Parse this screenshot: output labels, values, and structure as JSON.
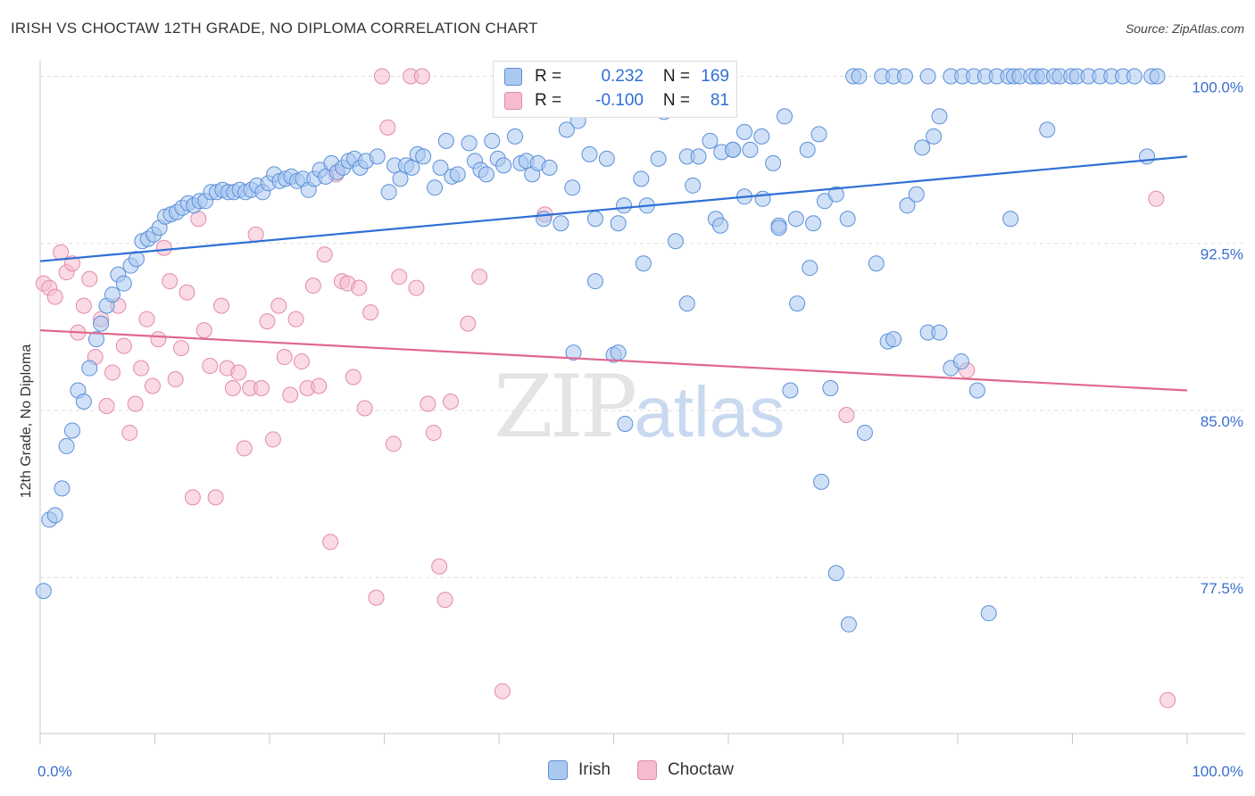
{
  "header": {
    "title": "IRISH VS CHOCTAW 12TH GRADE, NO DIPLOMA CORRELATION CHART",
    "source": "Source: ZipAtlas.com"
  },
  "watermark": {
    "zip": "ZIP",
    "atlas": "atlas"
  },
  "legend": {
    "irish": {
      "r_label": "R =",
      "r_value": "0.232",
      "n_label": "N =",
      "n_value": "169"
    },
    "choctaw": {
      "r_label": "R =",
      "r_value": "-0.100",
      "n_label": "N =",
      "n_value": "81"
    }
  },
  "bottom_legend": {
    "irish": "Irish",
    "choctaw": "Choctaw"
  },
  "colors": {
    "irish_fill": "#aac8f0",
    "irish_stroke": "#5b8fd9",
    "irish_line": "#2f6fd6",
    "choctaw_fill": "#f5bcd0",
    "choctaw_stroke": "#e38aa9",
    "choctaw_line": "#e0688f",
    "tick_text": "#3a6fd0"
  },
  "chart_data": {
    "type": "scatter",
    "title": "IRISH VS CHOCTAW 12TH GRADE, NO DIPLOMA CORRELATION CHART",
    "xlabel": "",
    "ylabel": "12th Grade, No Diploma",
    "xlim": [
      0,
      100
    ],
    "ylim": [
      70.5,
      100.7
    ],
    "x_tick_labels": [
      "0.0%",
      "100.0%"
    ],
    "y_ticks": [
      77.5,
      85.0,
      92.5,
      100.0
    ],
    "y_tick_labels": [
      "77.5%",
      "85.0%",
      "92.5%",
      "100.0%"
    ],
    "grid": true,
    "legend_position": "top-center",
    "series": [
      {
        "name": "Irish",
        "trend": {
          "x": [
            0,
            100
          ],
          "y": [
            91.7,
            96.4
          ]
        },
        "points": [
          [
            0.3,
            76.9
          ],
          [
            0.8,
            80.1
          ],
          [
            1.3,
            80.3
          ],
          [
            1.9,
            81.5
          ],
          [
            2.3,
            83.4
          ],
          [
            2.8,
            84.1
          ],
          [
            3.3,
            85.9
          ],
          [
            3.8,
            85.4
          ],
          [
            4.3,
            86.9
          ],
          [
            4.9,
            88.2
          ],
          [
            5.3,
            88.9
          ],
          [
            5.8,
            89.7
          ],
          [
            6.3,
            90.2
          ],
          [
            6.8,
            91.1
          ],
          [
            7.3,
            90.7
          ],
          [
            7.9,
            91.5
          ],
          [
            8.4,
            91.8
          ],
          [
            8.9,
            92.6
          ],
          [
            9.4,
            92.7
          ],
          [
            9.9,
            92.9
          ],
          [
            10.4,
            93.2
          ],
          [
            10.9,
            93.7
          ],
          [
            11.4,
            93.8
          ],
          [
            11.9,
            93.9
          ],
          [
            12.4,
            94.1
          ],
          [
            12.9,
            94.3
          ],
          [
            13.4,
            94.2
          ],
          [
            13.9,
            94.4
          ],
          [
            14.4,
            94.4
          ],
          [
            14.9,
            94.8
          ],
          [
            15.4,
            94.8
          ],
          [
            15.9,
            94.9
          ],
          [
            16.4,
            94.8
          ],
          [
            16.9,
            94.8
          ],
          [
            17.4,
            94.9
          ],
          [
            17.9,
            94.8
          ],
          [
            18.4,
            94.9
          ],
          [
            18.9,
            95.1
          ],
          [
            19.4,
            94.8
          ],
          [
            19.9,
            95.2
          ],
          [
            20.4,
            95.6
          ],
          [
            20.9,
            95.3
          ],
          [
            21.4,
            95.4
          ],
          [
            21.9,
            95.5
          ],
          [
            22.4,
            95.3
          ],
          [
            22.9,
            95.4
          ],
          [
            23.4,
            94.9
          ],
          [
            23.9,
            95.4
          ],
          [
            24.4,
            95.8
          ],
          [
            24.9,
            95.5
          ],
          [
            25.4,
            96.1
          ],
          [
            25.9,
            95.7
          ],
          [
            26.4,
            95.9
          ],
          [
            26.9,
            96.2
          ],
          [
            27.4,
            96.3
          ],
          [
            27.9,
            95.9
          ],
          [
            28.4,
            96.2
          ],
          [
            29.4,
            96.4
          ],
          [
            30.4,
            94.8
          ],
          [
            30.9,
            96.0
          ],
          [
            31.4,
            95.4
          ],
          [
            31.9,
            96.0
          ],
          [
            32.4,
            95.9
          ],
          [
            32.9,
            96.5
          ],
          [
            33.4,
            96.4
          ],
          [
            34.4,
            95.0
          ],
          [
            34.9,
            95.9
          ],
          [
            35.4,
            97.1
          ],
          [
            35.9,
            95.5
          ],
          [
            36.4,
            95.6
          ],
          [
            37.4,
            97.0
          ],
          [
            37.9,
            96.2
          ],
          [
            38.4,
            95.8
          ],
          [
            38.9,
            95.6
          ],
          [
            39.4,
            97.1
          ],
          [
            39.9,
            96.3
          ],
          [
            40.4,
            96.0
          ],
          [
            41.4,
            97.3
          ],
          [
            41.9,
            96.1
          ],
          [
            42.4,
            96.2
          ],
          [
            42.9,
            95.6
          ],
          [
            43.4,
            96.1
          ],
          [
            43.9,
            93.6
          ],
          [
            44.4,
            95.9
          ],
          [
            45.4,
            93.4
          ],
          [
            45.9,
            97.6
          ],
          [
            46.4,
            95.0
          ],
          [
            46.9,
            98.0
          ],
          [
            47.9,
            96.5
          ],
          [
            48.4,
            93.6
          ],
          [
            49.4,
            96.3
          ],
          [
            50.4,
            93.4
          ],
          [
            50.9,
            94.2
          ],
          [
            51.4,
            100.0
          ],
          [
            52.4,
            95.4
          ],
          [
            52.9,
            94.2
          ],
          [
            53.9,
            96.3
          ],
          [
            54.4,
            98.4
          ],
          [
            55.4,
            92.6
          ],
          [
            56.4,
            96.4
          ],
          [
            56.9,
            95.1
          ],
          [
            57.4,
            96.4
          ],
          [
            58.4,
            97.1
          ],
          [
            58.9,
            93.6
          ],
          [
            59.4,
            96.6
          ],
          [
            60.4,
            96.7
          ],
          [
            61.4,
            97.5
          ],
          [
            61.9,
            96.7
          ],
          [
            62.9,
            97.3
          ],
          [
            63.9,
            96.1
          ],
          [
            64.4,
            93.3
          ],
          [
            64.9,
            98.2
          ],
          [
            65.9,
            93.6
          ],
          [
            66.9,
            96.7
          ],
          [
            67.4,
            93.4
          ],
          [
            67.9,
            97.4
          ],
          [
            68.4,
            94.4
          ],
          [
            69.4,
            94.7
          ],
          [
            70.4,
            93.6
          ],
          [
            70.9,
            100.0
          ],
          [
            71.4,
            100.0
          ],
          [
            73.4,
            100.0
          ],
          [
            74.4,
            100.0
          ],
          [
            75.4,
            100.0
          ],
          [
            76.9,
            96.8
          ],
          [
            77.4,
            100.0
          ],
          [
            77.9,
            97.3
          ],
          [
            78.4,
            98.2
          ],
          [
            79.4,
            100.0
          ],
          [
            80.4,
            100.0
          ],
          [
            81.4,
            100.0
          ],
          [
            82.4,
            100.0
          ],
          [
            83.4,
            100.0
          ],
          [
            84.4,
            100.0
          ],
          [
            84.9,
            100.0
          ],
          [
            85.4,
            100.0
          ],
          [
            86.4,
            100.0
          ],
          [
            86.9,
            100.0
          ],
          [
            87.4,
            100.0
          ],
          [
            88.4,
            100.0
          ],
          [
            88.9,
            100.0
          ],
          [
            89.9,
            100.0
          ],
          [
            90.4,
            100.0
          ],
          [
            91.4,
            100.0
          ],
          [
            92.4,
            100.0
          ],
          [
            93.4,
            100.0
          ],
          [
            94.4,
            100.0
          ],
          [
            95.4,
            100.0
          ],
          [
            96.9,
            100.0
          ],
          [
            97.4,
            100.0
          ],
          [
            46.5,
            87.6
          ],
          [
            48.4,
            90.8
          ],
          [
            50.0,
            87.5
          ],
          [
            50.4,
            87.6
          ],
          [
            51.0,
            84.4
          ],
          [
            52.6,
            91.6
          ],
          [
            56.4,
            89.8
          ],
          [
            59.3,
            93.3
          ],
          [
            60.4,
            96.7
          ],
          [
            61.4,
            94.6
          ],
          [
            63.0,
            94.5
          ],
          [
            64.4,
            93.2
          ],
          [
            65.4,
            85.9
          ],
          [
            66.0,
            89.8
          ],
          [
            67.1,
            91.4
          ],
          [
            68.1,
            81.8
          ],
          [
            68.9,
            86.0
          ],
          [
            69.4,
            77.7
          ],
          [
            70.5,
            75.4
          ],
          [
            71.9,
            84.0
          ],
          [
            72.9,
            91.6
          ],
          [
            73.9,
            88.1
          ],
          [
            74.4,
            88.2
          ],
          [
            75.6,
            94.2
          ],
          [
            76.4,
            94.7
          ],
          [
            77.4,
            88.5
          ],
          [
            78.4,
            88.5
          ],
          [
            79.4,
            86.9
          ],
          [
            80.3,
            87.2
          ],
          [
            81.7,
            85.9
          ],
          [
            82.7,
            75.9
          ],
          [
            84.6,
            93.6
          ],
          [
            87.8,
            97.6
          ],
          [
            96.5,
            96.4
          ]
        ]
      },
      {
        "name": "Choctaw",
        "trend": {
          "x": [
            0,
            100
          ],
          "y": [
            88.6,
            85.9
          ]
        },
        "points": [
          [
            0.3,
            90.7
          ],
          [
            0.8,
            90.5
          ],
          [
            1.3,
            90.1
          ],
          [
            1.8,
            92.1
          ],
          [
            2.3,
            91.2
          ],
          [
            2.8,
            91.6
          ],
          [
            3.3,
            88.5
          ],
          [
            3.8,
            89.7
          ],
          [
            4.3,
            90.9
          ],
          [
            4.8,
            87.4
          ],
          [
            5.3,
            89.1
          ],
          [
            5.8,
            85.2
          ],
          [
            6.3,
            86.7
          ],
          [
            6.8,
            89.7
          ],
          [
            7.3,
            87.9
          ],
          [
            7.8,
            84.0
          ],
          [
            8.3,
            85.3
          ],
          [
            8.8,
            86.9
          ],
          [
            9.3,
            89.1
          ],
          [
            9.8,
            86.1
          ],
          [
            10.3,
            88.2
          ],
          [
            10.8,
            92.3
          ],
          [
            11.3,
            90.8
          ],
          [
            11.8,
            86.4
          ],
          [
            12.3,
            87.8
          ],
          [
            12.8,
            90.3
          ],
          [
            13.3,
            81.1
          ],
          [
            13.8,
            93.6
          ],
          [
            14.3,
            88.6
          ],
          [
            14.8,
            87.0
          ],
          [
            15.3,
            81.1
          ],
          [
            15.8,
            89.7
          ],
          [
            16.3,
            86.9
          ],
          [
            16.8,
            86.0
          ],
          [
            17.3,
            86.7
          ],
          [
            17.8,
            83.3
          ],
          [
            18.3,
            86.0
          ],
          [
            18.8,
            92.9
          ],
          [
            19.3,
            86.0
          ],
          [
            19.8,
            89.0
          ],
          [
            20.3,
            83.7
          ],
          [
            20.8,
            89.7
          ],
          [
            21.3,
            87.4
          ],
          [
            21.8,
            85.7
          ],
          [
            22.3,
            89.1
          ],
          [
            22.8,
            87.2
          ],
          [
            23.3,
            86.0
          ],
          [
            23.8,
            90.6
          ],
          [
            24.3,
            86.1
          ],
          [
            24.8,
            92.0
          ],
          [
            25.3,
            79.1
          ],
          [
            25.8,
            95.6
          ],
          [
            26.3,
            90.8
          ],
          [
            26.8,
            90.7
          ],
          [
            27.3,
            86.5
          ],
          [
            27.8,
            90.5
          ],
          [
            28.3,
            85.1
          ],
          [
            28.8,
            89.4
          ],
          [
            29.3,
            76.6
          ],
          [
            29.8,
            100.0
          ],
          [
            30.3,
            97.7
          ],
          [
            30.8,
            83.5
          ],
          [
            31.3,
            91.0
          ],
          [
            32.3,
            100.0
          ],
          [
            32.8,
            90.5
          ],
          [
            33.3,
            100.0
          ],
          [
            33.8,
            85.3
          ],
          [
            34.3,
            84.0
          ],
          [
            34.8,
            78.0
          ],
          [
            35.3,
            76.5
          ],
          [
            35.8,
            85.4
          ],
          [
            37.3,
            88.9
          ],
          [
            38.3,
            91.0
          ],
          [
            40.3,
            72.4
          ],
          [
            44.0,
            93.8
          ],
          [
            59.6,
            100.0
          ],
          [
            70.3,
            84.8
          ],
          [
            80.8,
            86.8
          ],
          [
            97.3,
            94.5
          ],
          [
            98.3,
            72.0
          ]
        ]
      }
    ]
  }
}
